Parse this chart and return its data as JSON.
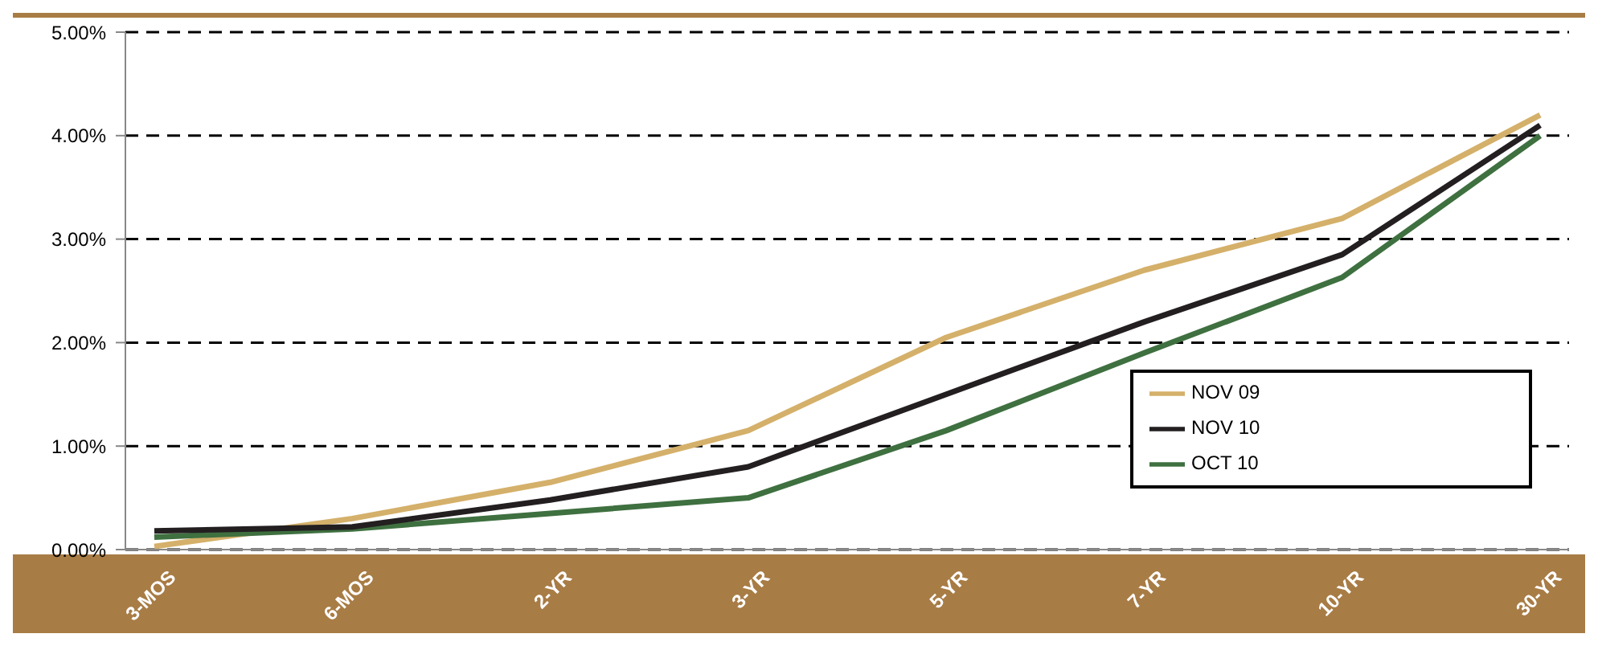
{
  "chart_data": {
    "type": "line",
    "categories": [
      "3-MOS",
      "6-MOS",
      "2-YR",
      "3-YR",
      "5-YR",
      "7-YR",
      "10-YR",
      "30-YR"
    ],
    "ylim": [
      0,
      5
    ],
    "yticks": [
      {
        "value": 0,
        "label": "0.00%"
      },
      {
        "value": 1,
        "label": "1.00%"
      },
      {
        "value": 2,
        "label": "2.00%"
      },
      {
        "value": 3,
        "label": "3.00%"
      },
      {
        "value": 4,
        "label": "4.00%"
      },
      {
        "value": 5,
        "label": "5.00%"
      }
    ],
    "grid": "y",
    "legend": "bottom right",
    "marker": "none",
    "series": [
      {
        "name": "NOV 09",
        "color": "#d4b06a",
        "values": [
          0.03,
          0.3,
          0.65,
          1.15,
          2.05,
          2.7,
          3.2,
          4.2
        ]
      },
      {
        "name": "OCT 10",
        "color": "#3f7040",
        "values": [
          0.12,
          0.2,
          0.35,
          0.5,
          1.15,
          1.9,
          2.63,
          4.0
        ]
      },
      {
        "name": "NOV 10",
        "color": "#231f20",
        "values": [
          0.18,
          0.22,
          0.48,
          0.8,
          1.5,
          2.2,
          2.85,
          4.1
        ]
      }
    ]
  }
}
